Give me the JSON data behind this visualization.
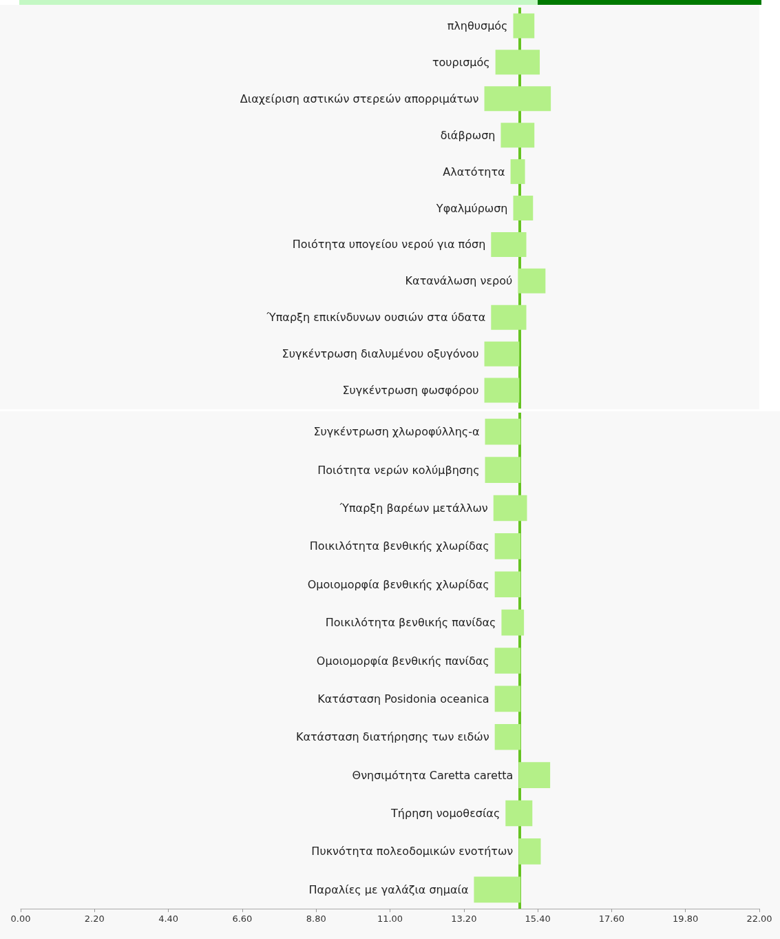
{
  "chart_data": [
    {
      "type": "bar",
      "orientation": "horizontal",
      "categories": [
        "πληθυσμός",
        "τουρισμός",
        "Διαχείριση αστικών στερεών απορριμάτων",
        "διάβρωση",
        "Αλατότητα",
        "Υφαλμύρωση",
        "Ποιότητα υπογείου νερού για πόση",
        "Κατανάλωση νερού",
        "Ύπαρξη επικίνδυνων ουσιών στα ύδατα",
        "Συγκέντρωση διαλυμένου οξυγόνου",
        "Συγκέντρωση φωσφόρου"
      ],
      "base": [
        14.67,
        14.14,
        13.81,
        14.3,
        14.59,
        14.67,
        14.01,
        14.81,
        14.01,
        13.81,
        13.81
      ],
      "values": [
        0.63,
        1.32,
        1.98,
        1.0,
        0.43,
        0.59,
        1.05,
        0.82,
        1.05,
        1.04,
        1.04
      ],
      "color": "#b4f088",
      "xlim": [
        0,
        22
      ],
      "tick_labels": false,
      "grid": false,
      "ref_lines": [
        {
          "axis": "x",
          "value": 14.86,
          "color": "#66c322"
        }
      ]
    },
    {
      "type": "bar",
      "orientation": "horizontal",
      "categories": [
        "Συγκέντρωση χλωροφύλλης-α",
        "Ποιότητα νερών κολύμβησης",
        "Ύπαρξη βαρέων μετάλλων",
        "Ποικιλότητα βενθικής χλωρίδας",
        "Ομοιομορφία βενθικής χλωρίδας",
        "Ποικιλότητα βενθικής πανίδας",
        "Ομοιομορφία βενθικής πανίδας",
        "Κατάσταση Posidonia oceanica",
        "Κατάσταση διατήρησης των ειδών",
        "Θνησιμότητα Caretta caretta",
        "Τήρηση νομοθεσίας",
        "Πυκνότητα πολεοδομικών ενοτήτων",
        "Παραλίες με γαλάζια σημαία"
      ],
      "base": [
        13.83,
        13.83,
        14.08,
        14.12,
        14.12,
        14.32,
        14.12,
        14.12,
        14.12,
        14.83,
        14.44,
        14.83,
        13.5
      ],
      "values": [
        1.06,
        1.06,
        1.0,
        0.77,
        0.77,
        0.67,
        0.77,
        0.77,
        0.77,
        0.94,
        0.8,
        0.66,
        1.39
      ],
      "color": "#b4f088",
      "xlim": [
        0,
        22
      ],
      "grid": false,
      "xticks": [
        {
          "value": 0,
          "label": "0.00"
        },
        {
          "value": 2.2,
          "label": "2.20"
        },
        {
          "value": 4.4,
          "label": "4.40"
        },
        {
          "value": 6.6,
          "label": "6.60"
        },
        {
          "value": 8.8,
          "label": "8.80"
        },
        {
          "value": 11,
          "label": "11.00"
        },
        {
          "value": 13.2,
          "label": "13.20"
        },
        {
          "value": 15.4,
          "label": "15.40"
        },
        {
          "value": 17.6,
          "label": "17.60"
        },
        {
          "value": 19.8,
          "label": "19.80"
        },
        {
          "value": 22,
          "label": "22.00"
        }
      ],
      "ref_lines": [
        {
          "axis": "x",
          "value": 14.86,
          "color": "#66c322"
        }
      ]
    }
  ]
}
